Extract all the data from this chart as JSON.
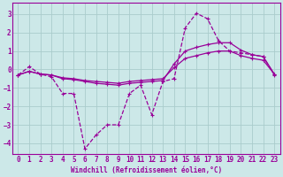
{
  "xlabel": "Windchill (Refroidissement éolien,°C)",
  "background_color": "#cce8e8",
  "line_color": "#990099",
  "grid_color": "#aacccc",
  "xlim": [
    -0.5,
    23.5
  ],
  "ylim": [
    -4.6,
    3.6
  ],
  "xticks": [
    0,
    1,
    2,
    3,
    4,
    5,
    6,
    7,
    8,
    9,
    10,
    11,
    12,
    13,
    14,
    15,
    16,
    17,
    18,
    19,
    20,
    21,
    22,
    23
  ],
  "yticks": [
    -4,
    -3,
    -2,
    -1,
    0,
    1,
    2,
    3
  ],
  "line1_x": [
    0,
    1,
    2,
    3,
    4,
    5,
    6,
    7,
    8,
    9,
    10,
    11,
    12,
    13,
    14,
    15,
    16,
    17,
    18,
    19,
    20,
    21,
    22,
    23
  ],
  "line1_y": [
    -0.3,
    0.15,
    -0.25,
    -0.4,
    -1.3,
    -1.3,
    -4.3,
    -3.55,
    -3.0,
    -3.0,
    -1.3,
    -0.85,
    -2.45,
    -0.65,
    -0.5,
    2.25,
    3.05,
    2.75,
    1.55,
    1.0,
    0.9,
    0.8,
    0.7,
    -0.3
  ],
  "line2_x": [
    0,
    1,
    2,
    3,
    4,
    5,
    6,
    7,
    8,
    9,
    10,
    11,
    12,
    13,
    14,
    15,
    16,
    17,
    18,
    19,
    20,
    21,
    22,
    23
  ],
  "line2_y": [
    -0.3,
    -0.1,
    -0.25,
    -0.3,
    -0.5,
    -0.55,
    -0.65,
    -0.75,
    -0.8,
    -0.85,
    -0.75,
    -0.7,
    -0.65,
    -0.6,
    0.3,
    1.0,
    1.2,
    1.35,
    1.45,
    1.45,
    1.05,
    0.8,
    0.7,
    -0.25
  ],
  "line3_x": [
    0,
    1,
    2,
    3,
    4,
    5,
    6,
    7,
    8,
    9,
    10,
    11,
    12,
    13,
    14,
    15,
    16,
    17,
    18,
    19,
    20,
    21,
    22,
    23
  ],
  "line3_y": [
    -0.3,
    -0.1,
    -0.25,
    -0.3,
    -0.45,
    -0.5,
    -0.6,
    -0.65,
    -0.7,
    -0.75,
    -0.65,
    -0.6,
    -0.55,
    -0.5,
    0.1,
    0.6,
    0.75,
    0.9,
    1.0,
    1.0,
    0.75,
    0.6,
    0.5,
    -0.25
  ]
}
